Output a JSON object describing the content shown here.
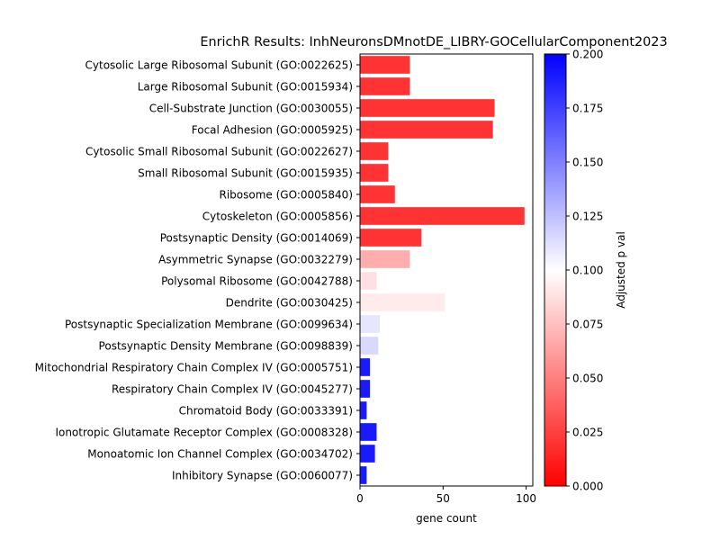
{
  "chart_data": {
    "type": "bar",
    "orientation": "horizontal",
    "title": "EnrichR Results: InhNeuronsDMnotDE_LIBRY-GOCellularComponent2023",
    "xlabel": "gene count",
    "ylabel": "",
    "xlim": [
      0,
      104
    ],
    "xticks": [
      "0",
      "50",
      "100"
    ],
    "xtick_values": [
      0,
      50,
      100
    ],
    "grid": false,
    "categories": [
      "Cytosolic Large Ribosomal Subunit (GO:0022625)",
      "Large Ribosomal Subunit (GO:0015934)",
      "Cell-Substrate Junction (GO:0030055)",
      "Focal Adhesion (GO:0005925)",
      "Cytosolic Small Ribosomal Subunit (GO:0022627)",
      "Small Ribosomal Subunit (GO:0015935)",
      "Ribosome (GO:0005840)",
      "Cytoskeleton (GO:0005856)",
      "Postsynaptic Density (GO:0014069)",
      "Asymmetric Synapse (GO:0032279)",
      "Polysomal Ribosome (GO:0042788)",
      "Dendrite (GO:0030425)",
      "Postsynaptic Specialization Membrane (GO:0099634)",
      "Postsynaptic Density Membrane (GO:0098839)",
      "Mitochondrial Respiratory Chain Complex IV (GO:0005751)",
      "Respiratory Chain Complex IV (GO:0045277)",
      "Chromatoid Body (GO:0033391)",
      "Ionotropic Glutamate Receptor Complex (GO:0008328)",
      "Monoatomic Ion Channel Complex (GO:0034702)",
      "Inhibitory Synapse (GO:0060077)"
    ],
    "values": [
      30,
      30,
      81,
      80,
      17,
      17,
      21,
      99,
      37,
      30,
      10,
      51,
      12,
      11,
      6,
      6,
      4,
      10,
      9,
      4
    ],
    "adjusted_p": [
      0.02,
      0.02,
      0.02,
      0.02,
      0.02,
      0.02,
      0.02,
      0.02,
      0.02,
      0.068,
      0.088,
      0.092,
      0.11,
      0.115,
      0.19,
      0.19,
      0.19,
      0.19,
      0.19,
      0.19
    ],
    "colorbar": {
      "label": "Adjusted p val",
      "min": 0.0,
      "max": 0.2,
      "ticks": [
        "0.000",
        "0.025",
        "0.050",
        "0.075",
        "0.100",
        "0.125",
        "0.150",
        "0.175",
        "0.200"
      ],
      "tick_values": [
        0.0,
        0.025,
        0.05,
        0.075,
        0.1,
        0.125,
        0.15,
        0.175,
        0.2
      ],
      "colormap": "bwr_r",
      "low_color": "#ff0000",
      "mid_color": "#ffffff",
      "high_color": "#0000ff"
    }
  }
}
